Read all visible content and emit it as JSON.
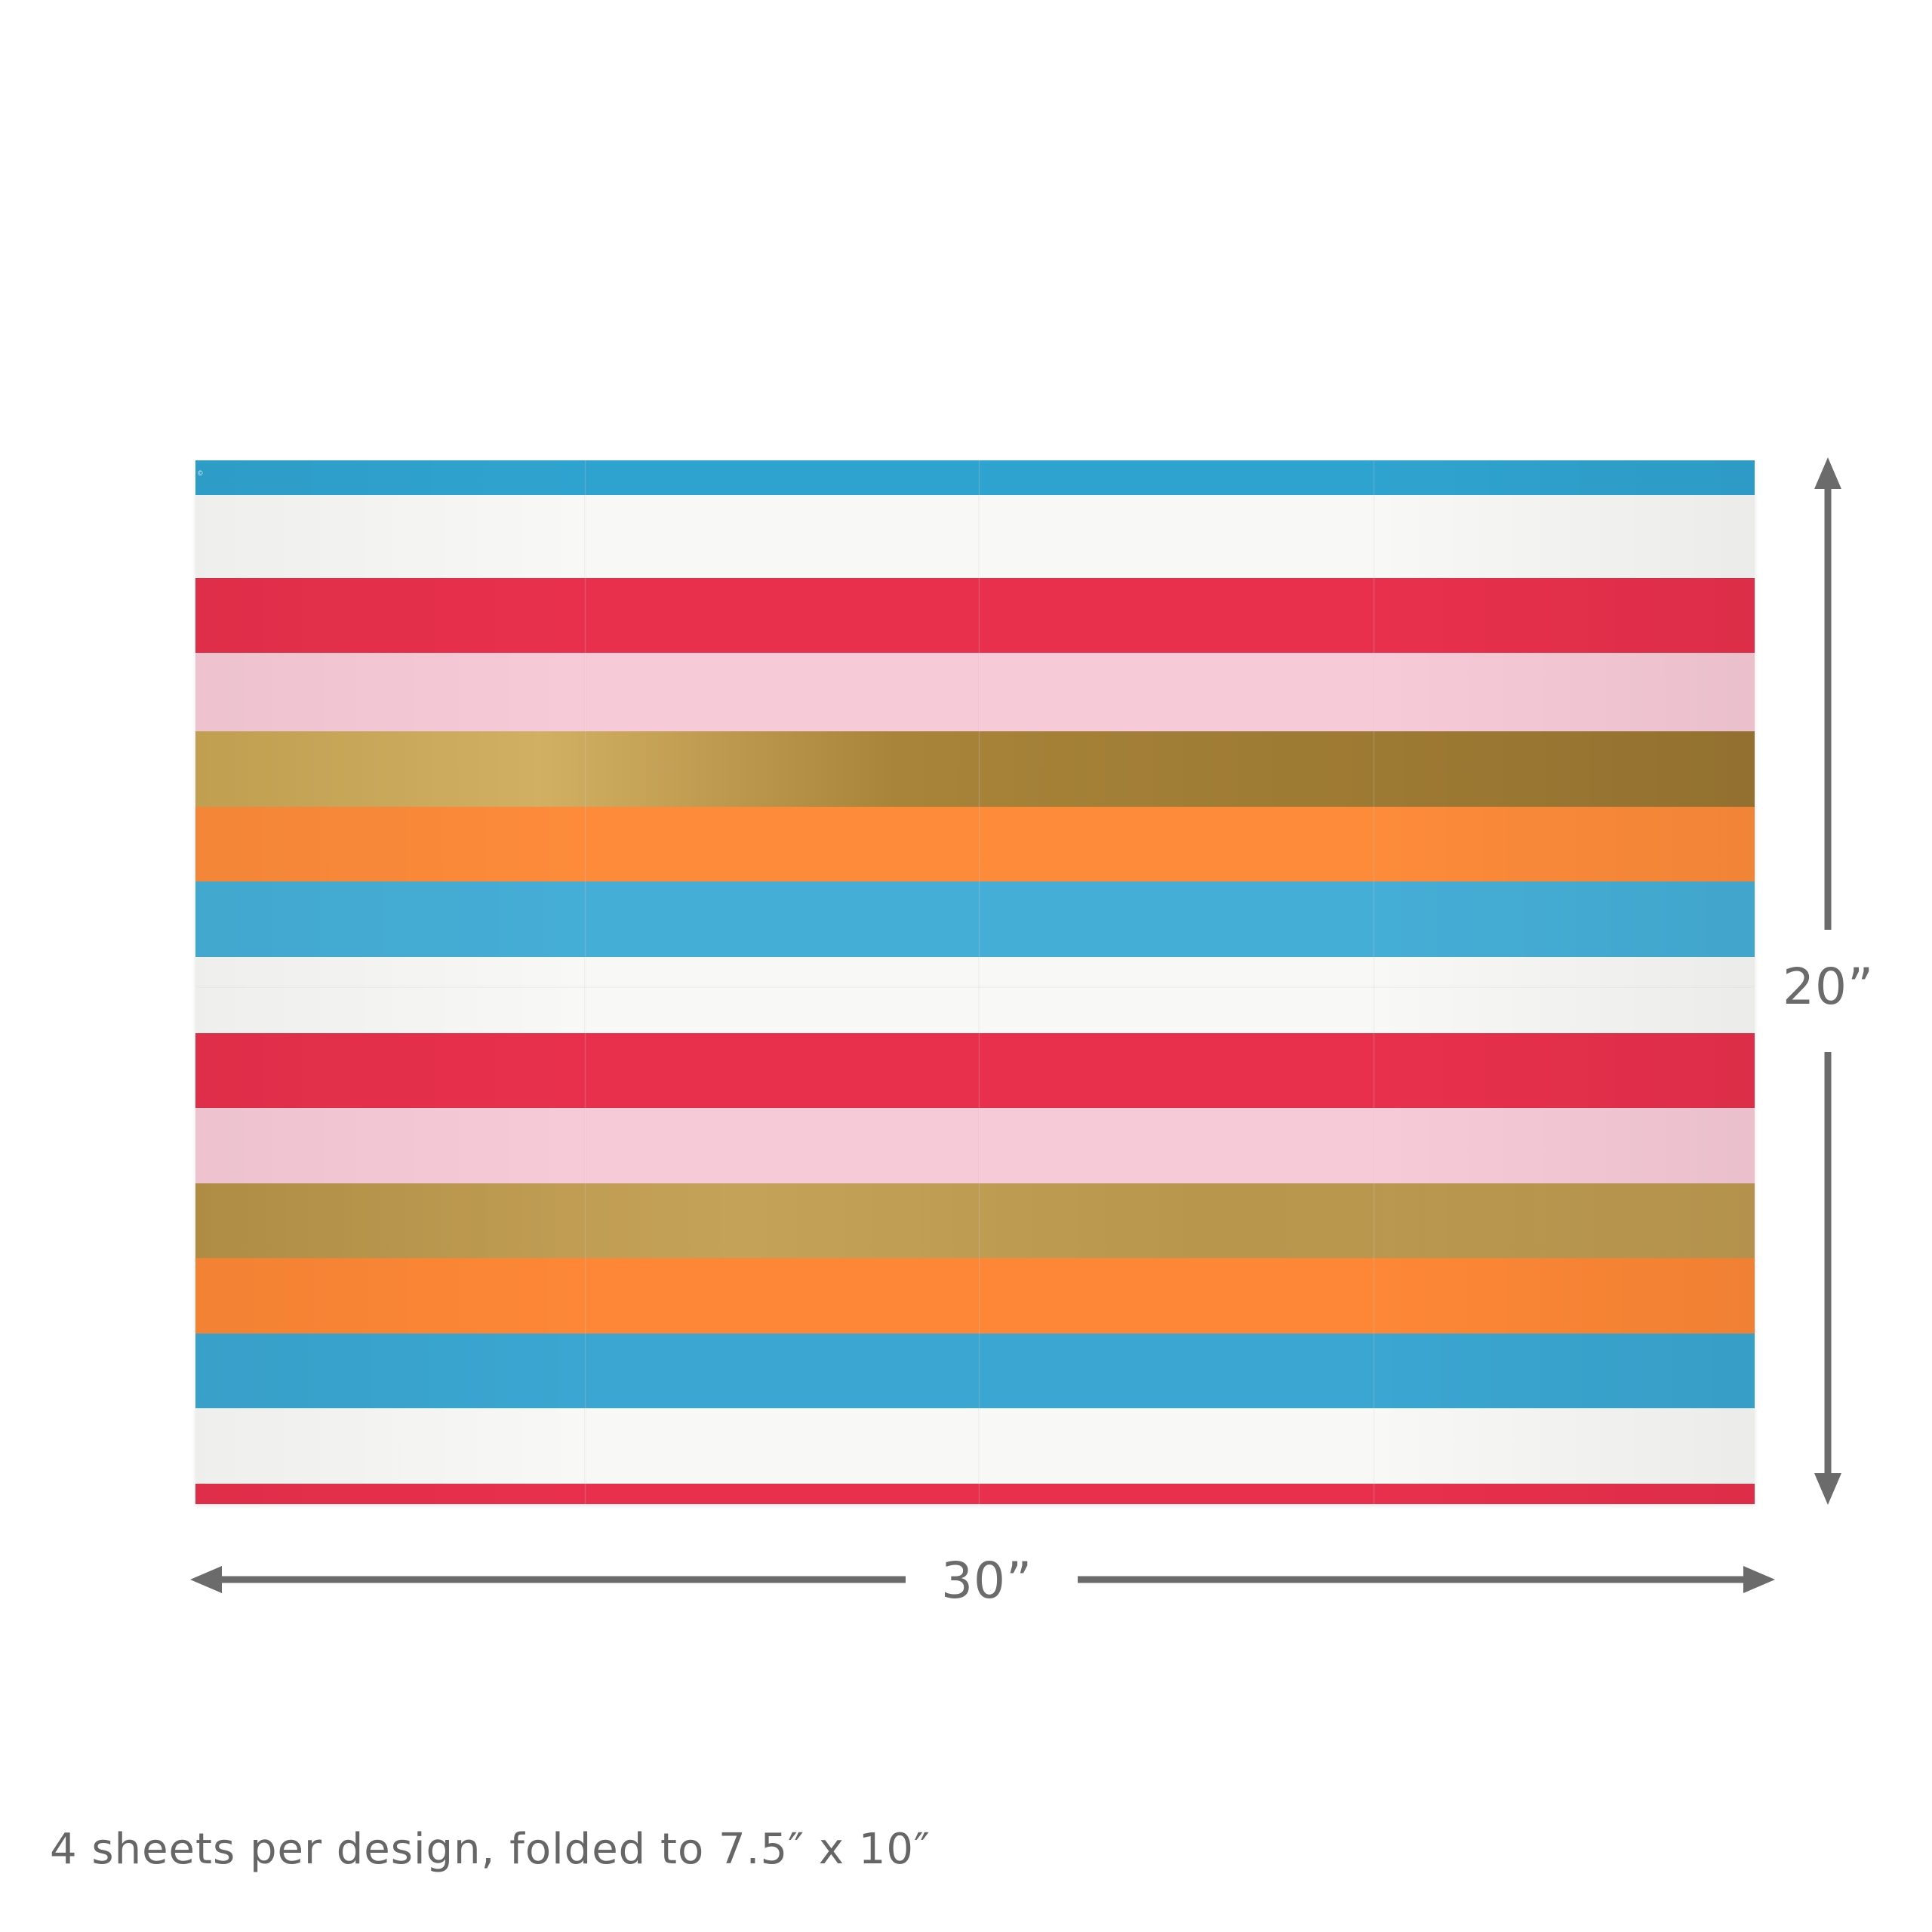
{
  "product": {
    "stripe_colors": {
      "blue": "#3aa8d2",
      "white": "#f7f7f5",
      "red": "#e8304c",
      "pink": "#f6c9d6",
      "gold": "#b89346",
      "orange": "#fd8b3a"
    },
    "stripe_sequence": [
      "blue",
      "white",
      "red",
      "pink",
      "gold",
      "orange",
      "blue",
      "white",
      "red",
      "pink",
      "gold",
      "orange",
      "blue",
      "white",
      "red"
    ],
    "sheet_copyright_mark": "©"
  },
  "dimensions": {
    "height_label": "20”",
    "width_label": "30”"
  },
  "caption": "4 sheets per design, folded to 7.5″ x 10″"
}
